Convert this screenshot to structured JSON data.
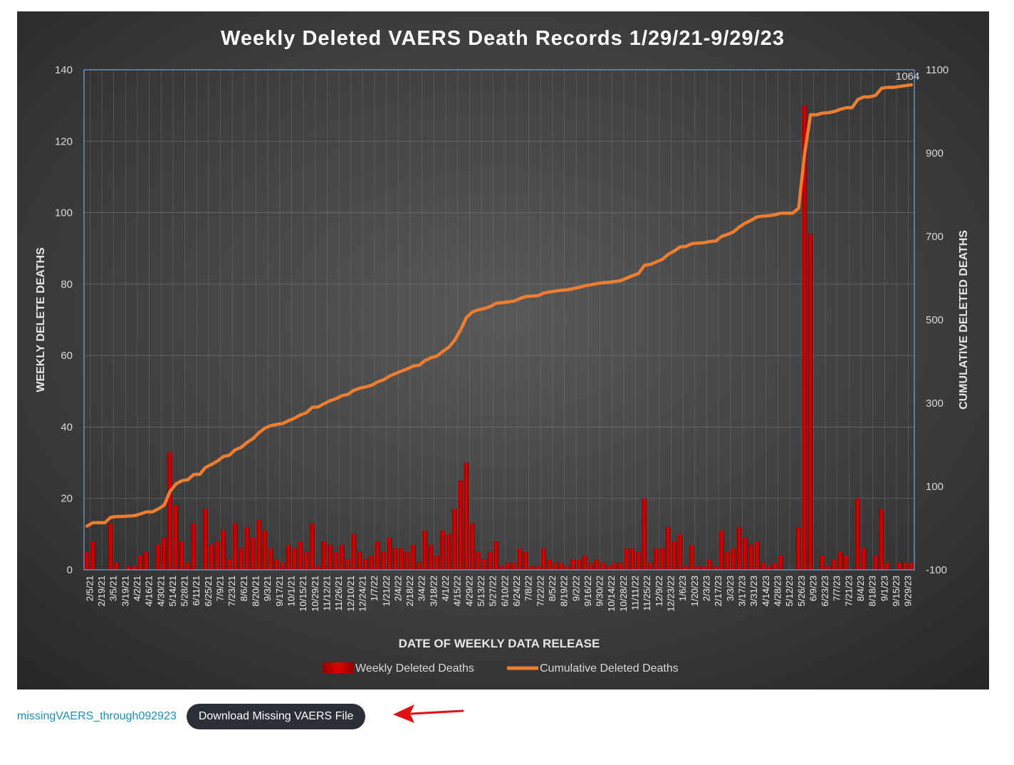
{
  "chart_data": {
    "type": "bar+line",
    "title": "Weekly Deleted VAERS Death Records 1/29/21-9/29/23",
    "xlabel": "DATE OF WEEKLY DATA RELEASE",
    "ylabel_left": "WEEKLY DELETE DEATHS",
    "ylabel_right": "CUMULATIVE DELETED DEATHS",
    "y_left": {
      "min": 0,
      "max": 140,
      "ticks": [
        0,
        20,
        40,
        60,
        80,
        100,
        120,
        140
      ]
    },
    "y_right": {
      "min": -100,
      "max": 1100,
      "ticks": [
        -100,
        100,
        300,
        500,
        700,
        900,
        1100
      ]
    },
    "x_tick_labels": [
      "2/5/21",
      "2/19/21",
      "3/5/21",
      "3/19/21",
      "4/2/21",
      "4/16/21",
      "4/30/21",
      "5/14/21",
      "5/28/21",
      "6/11/21",
      "6/25/21",
      "7/9/21",
      "7/23/21",
      "8/6/21",
      "8/20/21",
      "9/3/21",
      "9/17/21",
      "10/1/21",
      "10/15/21",
      "10/29/21",
      "11/12/21",
      "11/26/21",
      "12/10/21",
      "12/24/21",
      "1/7/22",
      "1/21/22",
      "2/4/22",
      "2/18/22",
      "3/4/22",
      "3/18/22",
      "4/1/22",
      "4/15/22",
      "4/29/22",
      "5/13/22",
      "5/27/22",
      "6/10/22",
      "6/24/22",
      "7/8/22",
      "7/22/22",
      "8/5/22",
      "8/19/22",
      "9/2/22",
      "9/16/22",
      "9/30/22",
      "10/14/22",
      "10/28/22",
      "11/11/22",
      "11/25/22",
      "12/9/22",
      "12/23/22",
      "1/6/23",
      "1/20/23",
      "2/3/23",
      "2/17/23",
      "3/3/23",
      "3/17/23",
      "3/31/23",
      "4/14/23",
      "4/28/23",
      "5/12/23",
      "5/26/23",
      "6/9/23",
      "6/23/23",
      "7/7/23",
      "7/21/23",
      "8/4/23",
      "8/18/23",
      "9/1/23",
      "9/15/23",
      "9/29/23"
    ],
    "series": [
      {
        "name": "Weekly Deleted Deaths",
        "kind": "bar",
        "color": "#c00000",
        "values": [
          5,
          8,
          0,
          0,
          13,
          2,
          0,
          1,
          1,
          4,
          5,
          0,
          7,
          9,
          33,
          18,
          8,
          2,
          13,
          0,
          17,
          7,
          8,
          11,
          3,
          13,
          6,
          12,
          9,
          14,
          11,
          6,
          3,
          2,
          7,
          6,
          8,
          5,
          13,
          1,
          8,
          7,
          5,
          7,
          3,
          10,
          5,
          3,
          4,
          8,
          5,
          9,
          6,
          6,
          5,
          7,
          2,
          11,
          7,
          4,
          11,
          10,
          17,
          25,
          30,
          13,
          5,
          3,
          5,
          8,
          1,
          2,
          2,
          6,
          5,
          1,
          1,
          6,
          3,
          2,
          2,
          1,
          3,
          3,
          4,
          2,
          3,
          2,
          1,
          2,
          2,
          6,
          6,
          5,
          20,
          2,
          6,
          6,
          12,
          8,
          10,
          1,
          7,
          1,
          1,
          3,
          1,
          11,
          5,
          6,
          12,
          9,
          7,
          8,
          2,
          1,
          2,
          4,
          0,
          0,
          12,
          130,
          94,
          0,
          4,
          1,
          3,
          5,
          4,
          0,
          20,
          6,
          0,
          4,
          17,
          2,
          0,
          2,
          2,
          2
        ]
      },
      {
        "name": "Cumulative Deleted Deaths",
        "kind": "line",
        "color": "#ed7d31",
        "values": [
          5,
          13,
          13,
          13,
          26,
          28,
          28,
          29,
          30,
          34,
          39,
          39,
          46,
          55,
          88,
          106,
          114,
          116,
          129,
          129,
          146,
          153,
          161,
          172,
          175,
          188,
          194,
          206,
          215,
          229,
          240,
          246,
          249,
          251,
          258,
          264,
          272,
          277,
          290,
          291,
          299,
          306,
          311,
          318,
          321,
          331,
          336,
          339,
          343,
          351,
          356,
          365,
          371,
          377,
          382,
          389,
          391,
          402,
          409,
          413,
          424,
          434,
          451,
          476,
          506,
          519,
          524,
          527,
          532,
          540,
          541,
          543,
          545,
          551,
          556,
          557,
          558,
          564,
          567,
          569,
          571,
          572,
          575,
          578,
          582,
          584,
          587,
          589,
          590,
          592,
          594,
          600,
          606,
          611,
          631,
          633,
          639,
          645,
          657,
          665,
          675,
          676,
          683,
          684,
          685,
          688,
          689,
          700,
          705,
          711,
          723,
          732,
          739,
          747,
          749,
          750,
          752,
          756,
          756,
          756,
          768,
          898,
          992,
          992,
          996,
          997,
          1000,
          1005,
          1009,
          1009,
          1029,
          1035,
          1035,
          1039,
          1056,
          1058,
          1058,
          1060,
          1062,
          1064
        ]
      }
    ],
    "annotations": [
      {
        "text": "1064"
      }
    ],
    "legend": {
      "placement": "bottom-center",
      "entries": [
        "Weekly Deleted Deaths",
        "Cumulative Deleted Deaths"
      ]
    },
    "grid": true
  },
  "footer": {
    "file_link_text": "missingVAERS_through092923",
    "download_button_label": "Download Missing VAERS File"
  }
}
